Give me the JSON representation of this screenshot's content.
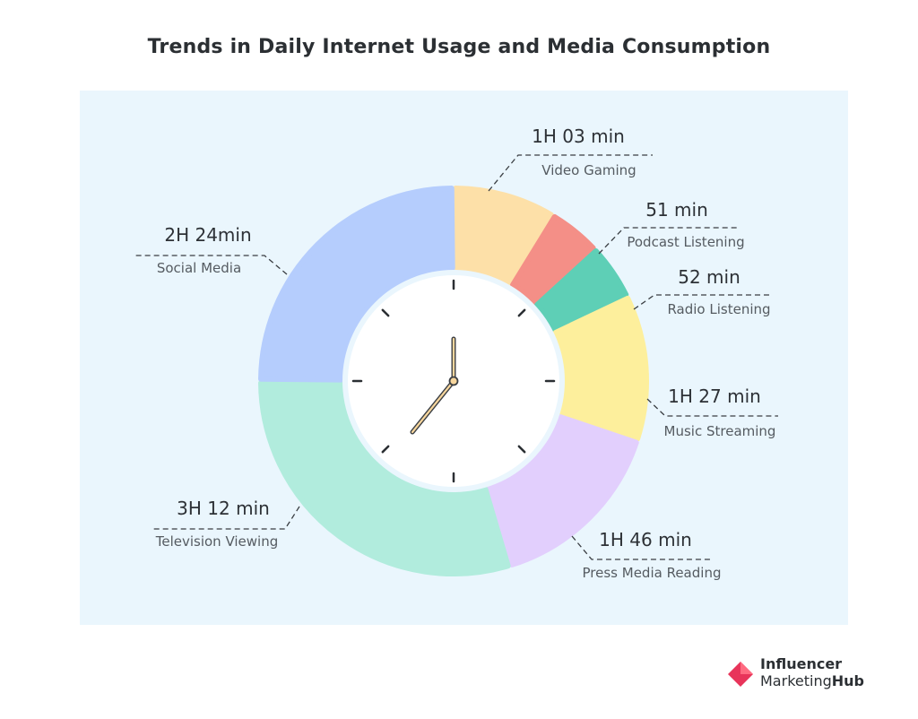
{
  "title": "Trends in Daily Internet Usage and Media Consumption",
  "brand": {
    "line1": "Influencer",
    "line2a": "Marketing",
    "line2b": "Hub"
  },
  "chart_data": {
    "type": "pie",
    "title": "Trends in Daily Internet Usage and Media Consumption",
    "unit": "minutes",
    "segments": [
      {
        "label": "Video Gaming",
        "value_text": "1H 03 min",
        "minutes": 63,
        "color": "#fde0a8"
      },
      {
        "label": "Podcast Listening",
        "value_text": "51 min",
        "minutes": 51,
        "color": "#f48f87"
      },
      {
        "label": "Radio Listening",
        "value_text": "52 min",
        "minutes": 52,
        "color": "#5ecfb6"
      },
      {
        "label": "Music Streaming",
        "value_text": "1H 27 min",
        "minutes": 87,
        "color": "#fdef9c"
      },
      {
        "label": "Press Media Reading",
        "value_text": "1H 46 min",
        "minutes": 106,
        "color": "#e2cffd"
      },
      {
        "label": "Television Viewing",
        "value_text": "3H 12 min",
        "minutes": 192,
        "color": "#b1ecdd"
      },
      {
        "label": "Social Media",
        "value_text": "2H 24min",
        "minutes": 144,
        "color": "#b5cdfd"
      }
    ],
    "clock": {
      "hour_hand": "7",
      "minute_hand": "00"
    }
  }
}
